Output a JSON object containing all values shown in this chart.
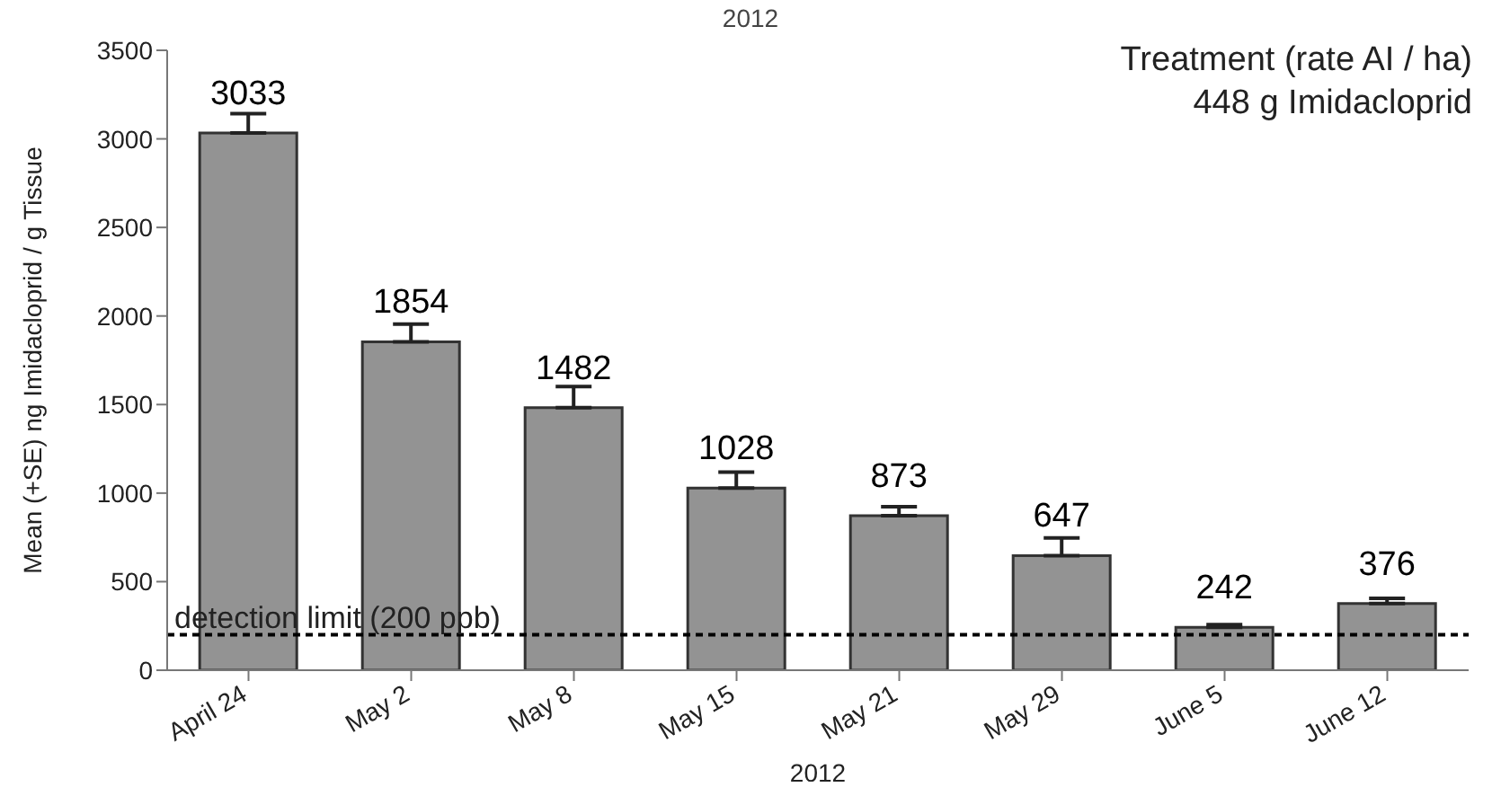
{
  "chart_data": {
    "type": "bar",
    "title": "2012",
    "xlabel": "2012",
    "ylabel": "Mean (+SE) ng Imidacloprid / g Tissue",
    "categories": [
      "April 24",
      "May 2",
      "May 8",
      "May 15",
      "May 21",
      "May 29",
      "June 5",
      "June 12"
    ],
    "values": [
      3033,
      1854,
      1482,
      1028,
      873,
      647,
      242,
      376
    ],
    "errors": [
      110,
      100,
      120,
      90,
      50,
      100,
      15,
      30
    ],
    "color": "#939393",
    "data_labels": true,
    "ylim": [
      0,
      3500
    ],
    "yticks": [
      0,
      500,
      1000,
      1500,
      2000,
      2500,
      3000,
      3500
    ],
    "grid": false,
    "ref_lines": [
      {
        "axis": "y",
        "value": 200,
        "label": "detection limit (200 ppb)",
        "color": "#000000",
        "line_style": "dashed"
      }
    ],
    "annotations": [
      "Treatment (rate AI / ha)",
      "448 g Imidacloprid"
    ]
  }
}
